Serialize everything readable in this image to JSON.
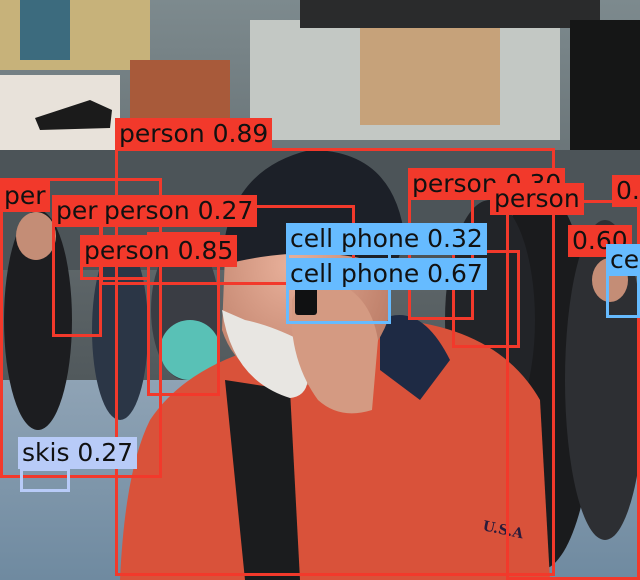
{
  "palette": {
    "person": "#f2392b",
    "cell_phone": "#66bbff",
    "skis": "#b8cbf8"
  },
  "scene": {
    "description_icon": "street-photo"
  },
  "detections": [
    {
      "id": "person-1",
      "label": "person 0.89",
      "class": "person"
    },
    {
      "id": "person-2",
      "label": "per",
      "class": "person"
    },
    {
      "id": "person-3",
      "label": "per",
      "class": "person"
    },
    {
      "id": "person-4",
      "label": "person 0.27",
      "class": "person"
    },
    {
      "id": "person-5",
      "label": "person 0.85",
      "class": "person"
    },
    {
      "id": "person-6",
      "label": "person 0.30",
      "class": "person"
    },
    {
      "id": "person-7",
      "label": "0.",
      "class": "person"
    },
    {
      "id": "person-8",
      "label": "person",
      "class": "person"
    },
    {
      "id": "person-9",
      "label": "0.60",
      "class": "person"
    },
    {
      "id": "phone-1",
      "label": "cell phone 0.32",
      "class": "cell_phone"
    },
    {
      "id": "phone-2",
      "label": "cell phone 0.67",
      "class": "cell_phone"
    },
    {
      "id": "phone-3",
      "label": "ce",
      "class": "cell_phone"
    },
    {
      "id": "skis-1",
      "label": "skis 0.27",
      "class": "skis"
    }
  ]
}
